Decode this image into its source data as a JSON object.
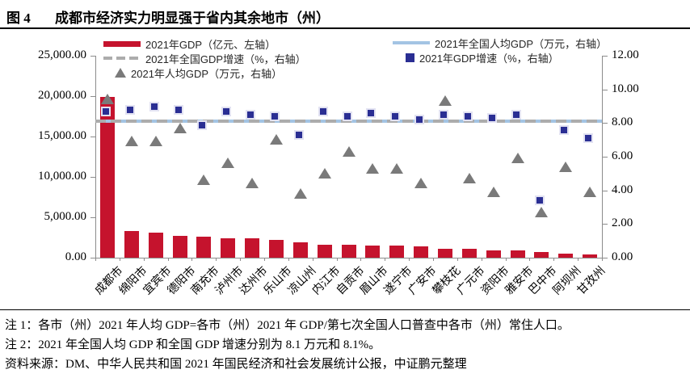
{
  "figure": {
    "label": "图 4",
    "title": "成都市经济实力明显强于省内其余地市（州）"
  },
  "legend": {
    "left": [
      {
        "swatch": "bar",
        "label": "2021年GDP（亿元、左轴）"
      },
      {
        "swatch": "dash",
        "label": "2021年全国GDP增速（%，右轴）"
      },
      {
        "swatch": "triangle",
        "label": "2021年人均GDP（万元，右轴）"
      }
    ],
    "right": [
      {
        "swatch": "line",
        "label": "2021年全国人均GDP（万元，右轴）"
      },
      {
        "swatch": "square",
        "label": "2021年GDP增速（%，右轴）"
      }
    ]
  },
  "colors": {
    "bar_red": "#C5132D",
    "square_blue": "#2A2E93",
    "square_border": "#E2E2F2",
    "triangle_gray": "#7A7A7A",
    "national_percapita_line": "#A3C4E4",
    "national_growth_dash": "#ACACAC",
    "axis": "#8C8C8C"
  },
  "chart_data": {
    "type": "combo-bar-scatter-line",
    "title": "成都市经济实力明显强于省内其余地市（州）",
    "categories": [
      "成都市",
      "绵阳市",
      "宜宾市",
      "德阳市",
      "南充市",
      "泸州市",
      "达州市",
      "乐山市",
      "凉山州",
      "内江市",
      "自贡市",
      "眉山市",
      "遂宁市",
      "广安市",
      "攀枝花",
      "广元市",
      "资阳市",
      "雅安市",
      "巴中市",
      "阿坝州",
      "甘孜州"
    ],
    "series": [
      {
        "name": "2021年GDP（亿元、左轴）",
        "type": "bar",
        "axis": "left",
        "values": [
          19917,
          3350,
          3148,
          2657,
          2602,
          2406,
          2351,
          2205,
          1901,
          1605,
          1601,
          1547,
          1477,
          1419,
          1134,
          1118,
          918,
          907,
          737,
          463,
          441
        ]
      },
      {
        "name": "2021年人均GDP（万元，右轴）",
        "type": "scatter-triangle",
        "axis": "right",
        "values": [
          9.4,
          6.9,
          6.9,
          7.7,
          4.6,
          5.6,
          4.4,
          7.0,
          3.8,
          5.0,
          6.3,
          5.3,
          5.3,
          4.4,
          9.3,
          4.7,
          3.9,
          5.9,
          2.7,
          5.4,
          3.9
        ]
      },
      {
        "name": "2021年GDP增速（%，右轴）",
        "type": "scatter-square",
        "axis": "right",
        "values": [
          8.6,
          8.7,
          8.9,
          8.7,
          7.8,
          8.6,
          8.4,
          8.3,
          7.2,
          8.6,
          8.3,
          8.5,
          8.3,
          8.1,
          8.4,
          8.3,
          8.2,
          8.4,
          3.3,
          7.5,
          7.0
        ]
      },
      {
        "name": "2021年全国人均GDP（万元，右轴）",
        "type": "line-constant",
        "axis": "right",
        "value": 8.1
      },
      {
        "name": "2021年全国GDP增速（%，右轴）",
        "type": "dashed-line-constant",
        "axis": "right",
        "value": 8.1
      }
    ],
    "left_axis": {
      "min": 0,
      "max": 25000,
      "step": 5000,
      "tick_labels": [
        "25,000.00",
        "20,000.00",
        "15,000.00",
        "10,000.00",
        "5,000.00",
        "0.00"
      ]
    },
    "right_axis": {
      "min": 0,
      "max": 12,
      "step": 2,
      "tick_labels": [
        "12.00",
        "10.00",
        "8.00",
        "6.00",
        "4.00",
        "2.00",
        "0.00"
      ]
    },
    "grid": false,
    "legend_position": "top"
  },
  "notes": {
    "note1": "注 1：各市（州）2021 年人均 GDP=各市（州）2021 年 GDP/第七次全国人口普查中各市（州）常住人口。",
    "note2": "注 2：2021 年全国人均 GDP 和全国 GDP 增速分别为 8.1 万元和 8.1%。",
    "source": "资料来源：DM、中华人民共和国 2021 年国民经济和社会发展统计公报，中证鹏元整理"
  }
}
